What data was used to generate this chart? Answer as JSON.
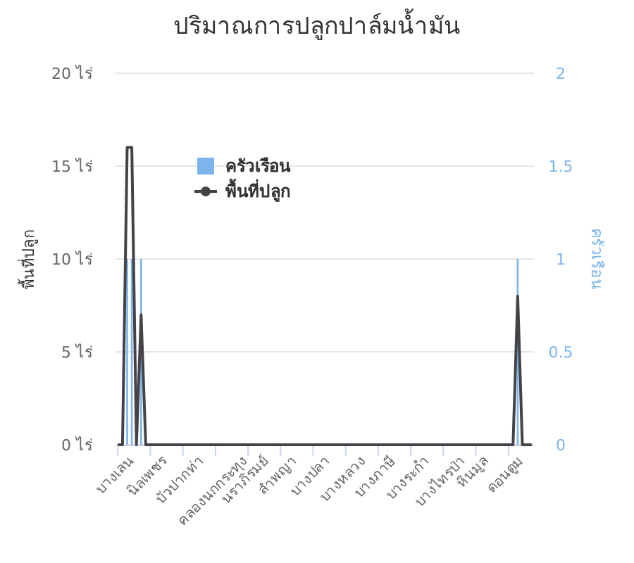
{
  "chart_data": {
    "type": "bar",
    "title": "ปริมาณการปลูกปาล์มน้ำมัน",
    "ylabel": "พื้นที่ปลูก",
    "y2label": "ครัวเรือน",
    "categories": [
      "บางเลน",
      null,
      null,
      null,
      null,
      null,
      null,
      "นิลเพชร",
      null,
      null,
      null,
      null,
      null,
      null,
      "บัวปากท่า",
      null,
      null,
      null,
      null,
      null,
      null,
      "คลองนกกระทุง",
      null,
      null,
      null,
      null,
      null,
      null,
      "นราภิรมย์",
      null,
      null,
      null,
      null,
      null,
      null,
      "ลำพญา",
      null,
      null,
      null,
      null,
      null,
      null,
      "บางปลา",
      null,
      null,
      null,
      null,
      null,
      null,
      "บางหลวง",
      null,
      null,
      null,
      null,
      null,
      null,
      "บางภาษี",
      null,
      null,
      null,
      null,
      null,
      null,
      "บางระกำ",
      null,
      null,
      null,
      null,
      null,
      null,
      "บางไทรป่า",
      null,
      null,
      null,
      null,
      null,
      null,
      "หินมูล",
      null,
      null,
      null,
      null,
      null,
      null,
      "ดอนตูม",
      null,
      null,
      null,
      null,
      null
    ],
    "series": [
      {
        "name": "ครัวเรือน",
        "axis": "y2",
        "color": "#7cb5ec",
        "values": [
          0,
          0,
          1,
          1,
          0,
          1,
          0,
          0,
          0,
          0,
          0,
          0,
          0,
          0,
          0,
          0,
          0,
          0,
          0,
          0,
          0,
          0,
          0,
          0,
          0,
          0,
          0,
          0,
          0,
          0,
          0,
          0,
          0,
          0,
          0,
          0,
          0,
          0,
          0,
          0,
          0,
          0,
          0,
          0,
          0,
          0,
          0,
          0,
          0,
          0,
          0,
          0,
          0,
          0,
          0,
          0,
          0,
          0,
          0,
          0,
          0,
          0,
          0,
          0,
          0,
          0,
          0,
          0,
          0,
          0,
          0,
          0,
          0,
          0,
          0,
          0,
          0,
          0,
          0,
          0,
          0,
          0,
          0,
          0,
          0,
          0,
          1,
          0,
          0,
          0
        ]
      },
      {
        "name": "พื้นที่ปลูก",
        "type": "line",
        "axis": "y",
        "color": "#434348",
        "values": [
          0,
          0,
          16,
          16,
          0,
          7,
          0,
          0,
          0,
          0,
          0,
          0,
          0,
          0,
          0,
          0,
          0,
          0,
          0,
          0,
          0,
          0,
          0,
          0,
          0,
          0,
          0,
          0,
          0,
          0,
          0,
          0,
          0,
          0,
          0,
          0,
          0,
          0,
          0,
          0,
          0,
          0,
          0,
          0,
          0,
          0,
          0,
          0,
          0,
          0,
          0,
          0,
          0,
          0,
          0,
          0,
          0,
          0,
          0,
          0,
          0,
          0,
          0,
          0,
          0,
          0,
          0,
          0,
          0,
          0,
          0,
          0,
          0,
          0,
          0,
          0,
          0,
          0,
          0,
          0,
          0,
          0,
          0,
          0,
          0,
          0,
          8,
          0,
          0,
          0
        ]
      }
    ],
    "ylim": [
      0,
      20
    ],
    "yticks": [
      {
        "value": 0,
        "label": "0 ไร่"
      },
      {
        "value": 5,
        "label": "5 ไร่"
      },
      {
        "value": 10,
        "label": "10 ไร่"
      },
      {
        "value": 15,
        "label": "15 ไร่"
      },
      {
        "value": 20,
        "label": "20 ไร่"
      }
    ],
    "y2lim": [
      0,
      2
    ],
    "y2ticks": [
      0,
      0.5,
      1,
      1.5,
      2
    ],
    "grid": "y",
    "legend": "top left",
    "marker": "none",
    "line_style": "solid"
  }
}
